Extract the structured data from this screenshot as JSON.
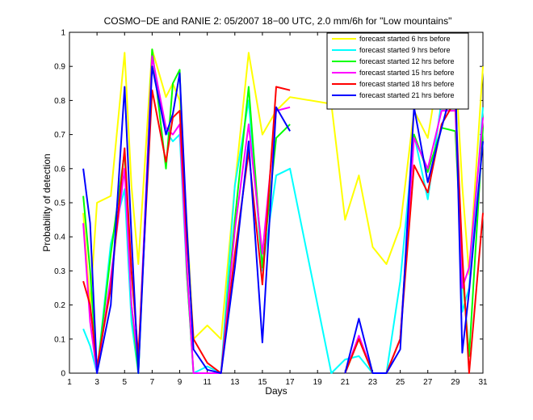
{
  "chart_data": {
    "type": "line",
    "title": "COSMO−DE and RANIE 2: 05/2007 18−00 UTC, 2.0 mm/6h for \"Low mountains\"",
    "xlabel": "Days",
    "ylabel": "Probability of detection",
    "xlim": [
      1,
      31
    ],
    "ylim": [
      0,
      1
    ],
    "x_ticks": [
      "1",
      "3",
      "5",
      "7",
      "9",
      "11",
      "13",
      "15",
      "17",
      "19",
      "21",
      "23",
      "25",
      "27",
      "29",
      "31"
    ],
    "y_ticks": [
      "0",
      "0.1",
      "0.2",
      "0.3",
      "0.4",
      "0.5",
      "0.6",
      "0.7",
      "0.8",
      "0.9",
      "1"
    ],
    "legend_position": "top-right",
    "x": [
      2,
      2.5,
      3,
      4,
      5,
      5.5,
      6,
      7,
      8,
      8.5,
      9,
      9.5,
      10,
      11,
      12,
      13,
      14,
      15,
      16,
      17,
      20,
      21,
      22,
      23,
      24,
      25,
      26,
      27,
      28,
      29,
      29.5,
      30,
      31
    ],
    "series": [
      {
        "name": "forecast started 6 hrs before",
        "color": "#ffff00",
        "values": [
          0.47,
          0.2,
          0.5,
          0.52,
          0.94,
          0.55,
          0.32,
          0.95,
          0.81,
          0.85,
          0.8,
          0.45,
          0.1,
          0.14,
          0.1,
          0.55,
          0.94,
          0.7,
          0.77,
          0.81,
          0.79,
          0.45,
          0.58,
          0.37,
          0.32,
          0.43,
          0.77,
          0.69,
          0.94,
          0.91,
          0.55,
          0.29,
          0.9
        ]
      },
      {
        "name": "forecast started 9 hrs before",
        "color": "#00ffff",
        "values": [
          0.13,
          0.08,
          0.0,
          0.38,
          0.54,
          0.15,
          0.0,
          0.93,
          0.71,
          0.68,
          0.7,
          0.3,
          0.0,
          0.02,
          0.0,
          0.55,
          0.8,
          0.3,
          0.58,
          0.6,
          0.0,
          0.04,
          0.05,
          0.0,
          0.0,
          0.27,
          0.7,
          0.51,
          0.8,
          0.81,
          0.18,
          0.25,
          0.78
        ]
      },
      {
        "name": "forecast started 12 hrs before",
        "color": "#00ff00",
        "values": [
          0.52,
          0.3,
          0.0,
          0.35,
          0.65,
          0.2,
          0.0,
          0.95,
          0.6,
          0.85,
          0.89,
          0.3,
          0.0,
          0.0,
          0.0,
          0.45,
          0.84,
          0.31,
          0.69,
          0.73,
          null,
          0.0,
          0.1,
          0.0,
          0.0,
          0.1,
          0.7,
          0.59,
          0.72,
          0.71,
          0.3,
          0.05,
          0.72
        ]
      },
      {
        "name": "forecast started 15 hrs before",
        "color": "#ff00ff",
        "values": [
          0.44,
          0.15,
          0.0,
          0.28,
          0.6,
          0.2,
          0.03,
          0.93,
          0.72,
          0.7,
          0.73,
          0.32,
          0.0,
          0.0,
          0.0,
          0.42,
          0.73,
          0.35,
          0.77,
          0.78,
          null,
          0.0,
          0.11,
          0.0,
          0.0,
          0.1,
          0.69,
          0.6,
          0.77,
          0.77,
          0.25,
          0.31,
          0.75
        ]
      },
      {
        "name": "forecast started 18 hrs before",
        "color": "#ff0000",
        "values": [
          0.27,
          0.2,
          0.02,
          0.25,
          0.66,
          0.3,
          0.05,
          0.83,
          0.62,
          0.75,
          0.77,
          0.4,
          0.1,
          0.03,
          0.0,
          0.35,
          0.65,
          0.26,
          0.84,
          0.83,
          null,
          0.0,
          0.1,
          0.0,
          0.0,
          0.1,
          0.61,
          0.53,
          0.73,
          0.8,
          0.35,
          0.0,
          0.47
        ]
      },
      {
        "name": "forecast started 21 hrs before",
        "color": "#0000ff",
        "values": [
          0.6,
          0.44,
          0.0,
          0.2,
          0.84,
          0.4,
          0.0,
          0.9,
          0.7,
          0.76,
          0.88,
          0.44,
          0.07,
          0.01,
          0.0,
          0.31,
          0.68,
          0.09,
          0.78,
          0.71,
          null,
          0.0,
          0.16,
          0.0,
          0.0,
          0.07,
          0.78,
          0.56,
          0.72,
          0.87,
          0.06,
          0.24,
          0.68
        ]
      }
    ]
  }
}
